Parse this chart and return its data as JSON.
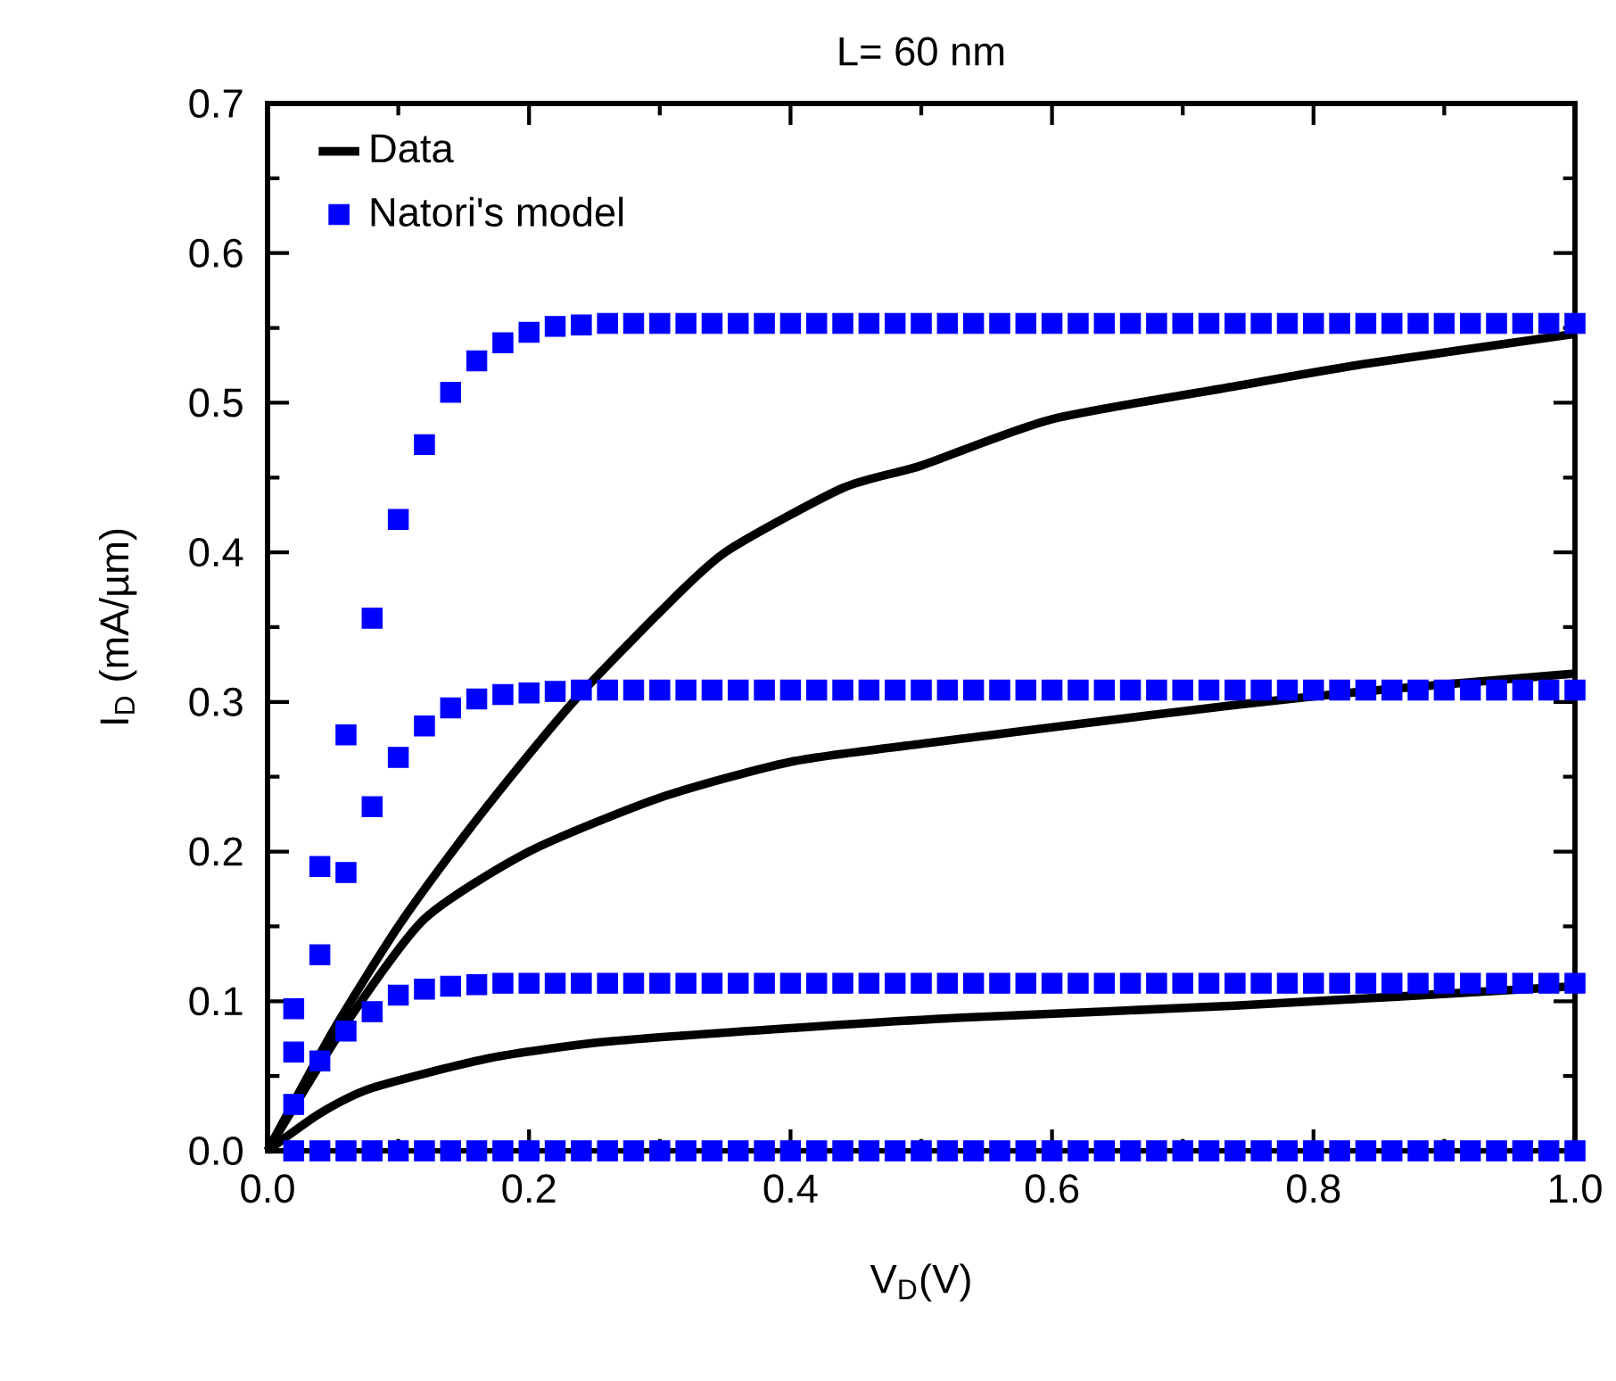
{
  "chart_data": {
    "type": "scatter",
    "title": "L= 60 nm",
    "xlabel": "V$_{D}$(V)",
    "ylabel": "I$_{D}$ (mA/µm)",
    "x": [
      0.02,
      0.04,
      0.06,
      0.08,
      0.1,
      0.12,
      0.14,
      0.16,
      0.18,
      0.2,
      0.22,
      0.24,
      0.26,
      0.28,
      0.3,
      0.32,
      0.34,
      0.36,
      0.38,
      0.4,
      0.42,
      0.44,
      0.46,
      0.48,
      0.5,
      0.52,
      0.54,
      0.56,
      0.58,
      0.6,
      0.62,
      0.64,
      0.66,
      0.68,
      0.7,
      0.72,
      0.74,
      0.76,
      0.78,
      0.8,
      0.82,
      0.84,
      0.86,
      0.88,
      0.9,
      0.92,
      0.94,
      0.96,
      0.98,
      1.0
    ],
    "series": [
      {
        "name": "Data",
        "type": "line",
        "color": "#000000",
        "line_style": "solid",
        "marker": "none",
        "x": [
          0,
          0.05,
          0.1,
          0.15,
          0.2,
          0.24,
          0.3,
          0.35,
          0.44,
          0.5,
          0.6,
          0.74,
          0.84,
          1.0
        ],
        "values": [
          0,
          0.08,
          0.15,
          0.21,
          0.265,
          0.306,
          0.36,
          0.4,
          0.443,
          0.458,
          0.489,
          0.511,
          0.526,
          0.546
        ]
      },
      {
        "type": "line",
        "color": "#000000",
        "line_style": "solid",
        "marker": "none",
        "x": [
          0,
          0.06,
          0.12,
          0.2,
          0.3,
          0.4,
          0.5,
          0.6,
          0.74,
          0.85,
          1.0
        ],
        "values": [
          0,
          0.085,
          0.155,
          0.2,
          0.236,
          0.26,
          0.272,
          0.283,
          0.298,
          0.308,
          0.319
        ]
      },
      {
        "type": "line",
        "color": "#000000",
        "line_style": "solid",
        "marker": "none",
        "x": [
          0,
          0.04,
          0.08,
          0.17,
          0.26,
          0.4,
          0.53,
          0.74,
          1.0
        ],
        "values": [
          0,
          0.025,
          0.042,
          0.062,
          0.073,
          0.082,
          0.089,
          0.097,
          0.11
        ]
      },
      {
        "name": "Natori's model",
        "color": "#0000ff",
        "marker": "square",
        "values": [
          0.095,
          0.19,
          0.278,
          0.356,
          0.422,
          0.472,
          0.507,
          0.528,
          0.54,
          0.547,
          0.551,
          0.552,
          0.553,
          0.553,
          0.553,
          0.553,
          0.553,
          0.553,
          0.553,
          0.553,
          0.553,
          0.553,
          0.553,
          0.553,
          0.553,
          0.553,
          0.553,
          0.553,
          0.553,
          0.553,
          0.553,
          0.553,
          0.553,
          0.553,
          0.553,
          0.553,
          0.553,
          0.553,
          0.553,
          0.553,
          0.553,
          0.553,
          0.553,
          0.553,
          0.553,
          0.553,
          0.553,
          0.553,
          0.553,
          0.553
        ]
      },
      {
        "color": "#0000ff",
        "marker": "square",
        "values": [
          0.066,
          0.131,
          0.186,
          0.23,
          0.263,
          0.284,
          0.296,
          0.302,
          0.305,
          0.306,
          0.307,
          0.308,
          0.308,
          0.308,
          0.308,
          0.308,
          0.308,
          0.308,
          0.308,
          0.308,
          0.308,
          0.308,
          0.308,
          0.308,
          0.308,
          0.308,
          0.308,
          0.308,
          0.308,
          0.308,
          0.308,
          0.308,
          0.308,
          0.308,
          0.308,
          0.308,
          0.308,
          0.308,
          0.308,
          0.308,
          0.308,
          0.308,
          0.308,
          0.308,
          0.308,
          0.308,
          0.308,
          0.308,
          0.308,
          0.308
        ]
      },
      {
        "color": "#0000ff",
        "marker": "square",
        "values": [
          0.031,
          0.06,
          0.08,
          0.093,
          0.104,
          0.108,
          0.11,
          0.111,
          0.112,
          0.112,
          0.112,
          0.112,
          0.112,
          0.112,
          0.112,
          0.112,
          0.112,
          0.112,
          0.112,
          0.112,
          0.112,
          0.112,
          0.112,
          0.112,
          0.112,
          0.112,
          0.112,
          0.112,
          0.112,
          0.112,
          0.112,
          0.112,
          0.112,
          0.112,
          0.112,
          0.112,
          0.112,
          0.112,
          0.112,
          0.112,
          0.112,
          0.112,
          0.112,
          0.112,
          0.112,
          0.112,
          0.112,
          0.112,
          0.112,
          0.112
        ]
      },
      {
        "color": "#0000ff",
        "marker": "square",
        "values": [
          0,
          0,
          0,
          0,
          0,
          0,
          0,
          0,
          0,
          0,
          0,
          0,
          0,
          0,
          0,
          0,
          0,
          0,
          0,
          0,
          0,
          0,
          0,
          0,
          0,
          0,
          0,
          0,
          0,
          0,
          0,
          0,
          0,
          0,
          0,
          0,
          0,
          0,
          0,
          0,
          0,
          0,
          0,
          0,
          0,
          0,
          0,
          0,
          0,
          0
        ]
      }
    ],
    "xlim": [
      0,
      1.0
    ],
    "ylim": [
      0,
      0.7
    ],
    "xticks": [
      {
        "value": 0,
        "label": "0.0"
      },
      0.2,
      0.4,
      0.6,
      0.8,
      {
        "value": 1.0,
        "label": "1.0"
      }
    ],
    "yticks": [
      {
        "value": 0,
        "label": "0.0"
      },
      0.1,
      0.2,
      0.3,
      0.4,
      0.5,
      0.6,
      0.7
    ],
    "grid": false,
    "legend": "top left"
  }
}
